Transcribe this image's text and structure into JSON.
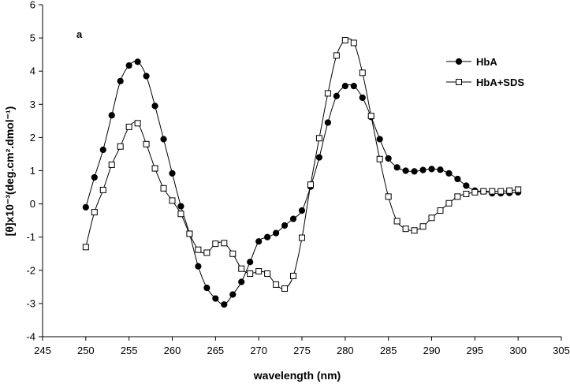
{
  "chart_data": {
    "type": "line",
    "panel_label": "a",
    "xlabel": "wavelength (nm)",
    "ylabel": "[θ]x10⁻³(deg.cm².dmol⁻¹)",
    "xlim": [
      245,
      305
    ],
    "ylim": [
      -4,
      6
    ],
    "xticks": [
      245,
      250,
      255,
      260,
      265,
      270,
      275,
      280,
      285,
      290,
      295,
      300,
      305
    ],
    "yticks": [
      -4,
      -3,
      -2,
      -1,
      0,
      1,
      2,
      3,
      4,
      5,
      6
    ],
    "grid": false,
    "legend_position": "top-right",
    "x": [
      250,
      251,
      252,
      253,
      254,
      255,
      256,
      257,
      258,
      259,
      260,
      261,
      262,
      263,
      264,
      265,
      266,
      267,
      268,
      269,
      270,
      271,
      272,
      273,
      274,
      275,
      276,
      277,
      278,
      279,
      280,
      281,
      282,
      283,
      284,
      285,
      286,
      287,
      288,
      289,
      290,
      291,
      292,
      293,
      294,
      295,
      296,
      297,
      298,
      299,
      300
    ],
    "series": [
      {
        "name": "HbA",
        "marker": "filled-circle",
        "color": "#000000",
        "values": [
          -0.1,
          0.8,
          1.63,
          2.67,
          3.7,
          4.17,
          4.28,
          3.85,
          2.95,
          1.95,
          0.92,
          -0.07,
          -0.9,
          -1.88,
          -2.53,
          -2.85,
          -3.03,
          -2.73,
          -2.35,
          -1.75,
          -1.13,
          -1.0,
          -0.88,
          -0.65,
          -0.45,
          -0.2,
          0.52,
          1.4,
          2.45,
          3.25,
          3.55,
          3.55,
          3.2,
          2.62,
          1.95,
          1.37,
          1.1,
          1.0,
          0.98,
          1.02,
          1.05,
          1.03,
          0.92,
          0.75,
          0.55,
          0.4,
          0.38,
          0.32,
          0.32,
          0.33,
          0.35
        ]
      },
      {
        "name": "HbA+SDS",
        "marker": "open-square",
        "color": "#000000",
        "values": [
          -1.3,
          -0.25,
          0.42,
          1.18,
          1.73,
          2.32,
          2.43,
          1.8,
          1.07,
          0.47,
          0.1,
          -0.3,
          -0.9,
          -1.38,
          -1.47,
          -1.2,
          -1.18,
          -1.5,
          -1.95,
          -2.1,
          -2.03,
          -2.1,
          -2.43,
          -2.55,
          -2.17,
          -1.02,
          0.58,
          1.98,
          3.33,
          4.47,
          4.93,
          4.85,
          3.95,
          2.65,
          1.35,
          0.22,
          -0.52,
          -0.75,
          -0.8,
          -0.68,
          -0.42,
          -0.2,
          0.02,
          0.22,
          0.3,
          0.35,
          0.38,
          0.38,
          0.38,
          0.4,
          0.43
        ]
      }
    ]
  }
}
